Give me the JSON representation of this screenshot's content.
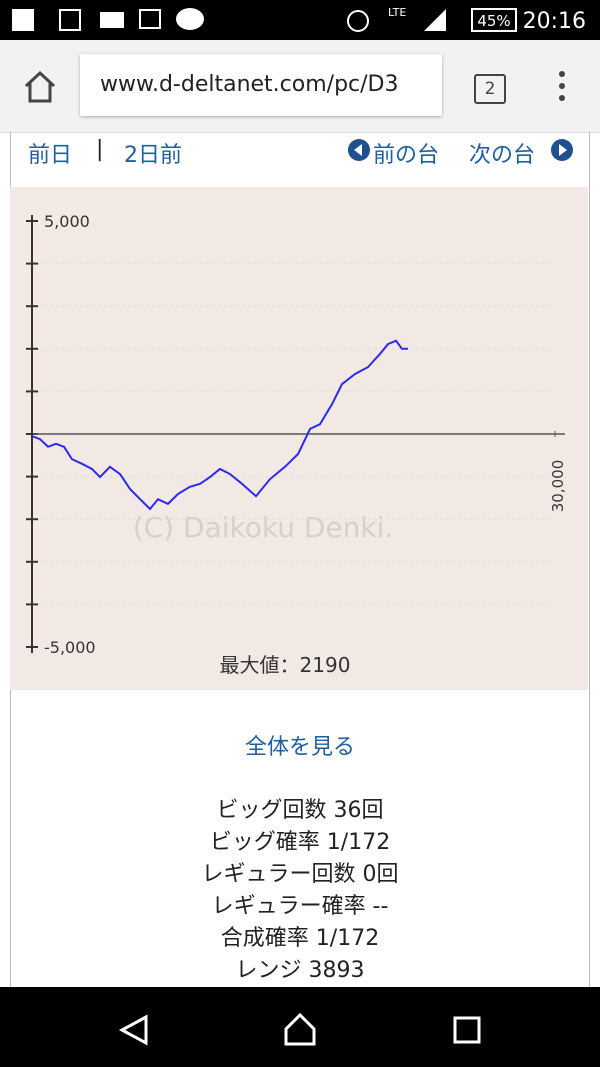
{
  "status_bar": {
    "network": "LTE",
    "battery": "45%",
    "time": "20:16"
  },
  "browser": {
    "url": "www.d-deltanet.com/pc/D3",
    "tab_count": "2"
  },
  "nav_links": {
    "prev_day": "前日",
    "separator": "|",
    "two_days_ago": "2日前",
    "prev_machine": "前の台",
    "next_machine": "次の台"
  },
  "chart_data": {
    "type": "line",
    "watermark": "(C) Daikoku Denki.",
    "max_label": "最大値：2190",
    "x": [
      0,
      460,
      920,
      1380,
      1840,
      2290,
      2870,
      3440,
      3900,
      4470,
      5050,
      5620,
      6200,
      6770,
      7230,
      7800,
      8370,
      9060,
      9640,
      10210,
      10780,
      11360,
      12050,
      12850,
      13650,
      14510,
      15260,
      15950,
      16520,
      17210,
      17780,
      18530,
      19270,
      19960,
      20420,
      20880,
      21220,
      21570
    ],
    "series": [
      {
        "color": "#2a2af0",
        "values": [
          -50,
          -120,
          -300,
          -230,
          -300,
          -590,
          -700,
          -820,
          -1010,
          -770,
          -940,
          -1290,
          -1530,
          -1760,
          -1530,
          -1640,
          -1410,
          -1240,
          -1170,
          -1010,
          -820,
          -940,
          -1170,
          -1460,
          -1060,
          -770,
          -470,
          120,
          230,
          700,
          1170,
          1410,
          1570,
          1880,
          2110,
          2190,
          2000,
          2000
        ]
      }
    ],
    "xlim": [
      0,
      30000
    ],
    "xticks": [
      {
        "value": 30000,
        "label": "30,000"
      }
    ],
    "ylim": [
      -5000,
      5000
    ],
    "yticks": [
      {
        "value": 5000,
        "label": "5,000"
      },
      {
        "value": -5000,
        "label": "-5,000"
      }
    ],
    "yticks_minor": [
      -4000,
      -3000,
      -2000,
      -1000,
      0,
      1000,
      2000,
      3000,
      4000
    ],
    "grid": true
  },
  "link_all": "全体を見る",
  "stats": [
    "ビッグ回数 36回",
    "ビッグ確率 1/172",
    "レギュラー回数 0回",
    "レギュラー確率 --",
    "合成確率 1/172",
    "レンジ 3893"
  ]
}
